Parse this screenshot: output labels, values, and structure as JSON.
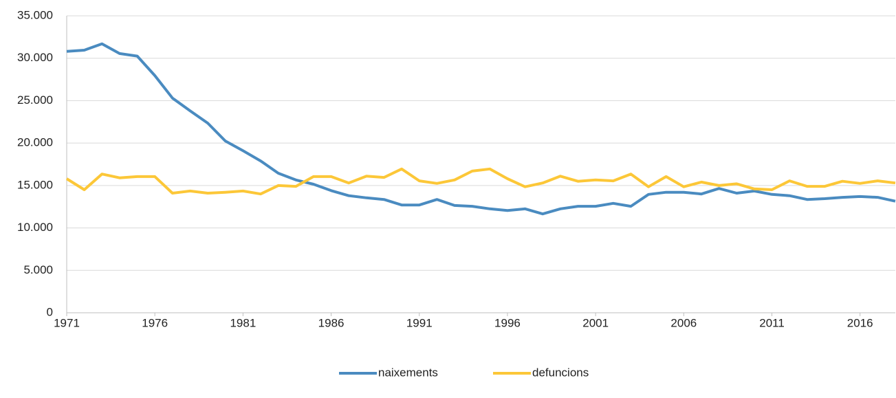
{
  "chart_data": {
    "type": "line",
    "x": [
      1971,
      1972,
      1973,
      1974,
      1975,
      1976,
      1977,
      1978,
      1979,
      1980,
      1981,
      1982,
      1983,
      1984,
      1985,
      1986,
      1987,
      1988,
      1989,
      1990,
      1991,
      1992,
      1993,
      1994,
      1995,
      1996,
      1997,
      1998,
      1999,
      2000,
      2001,
      2002,
      2003,
      2004,
      2005,
      2006,
      2007,
      2008,
      2009,
      2010,
      2011,
      2012,
      2013,
      2014,
      2015,
      2016,
      2017,
      2018
    ],
    "xlim": [
      1971,
      2018
    ],
    "xticks": [
      1971,
      1976,
      1981,
      1986,
      1991,
      1996,
      2001,
      2006,
      2011,
      2016
    ],
    "ylim": [
      0,
      35000
    ],
    "yticks": [
      {
        "value": 0,
        "label": "0"
      },
      {
        "value": 5000,
        "label": "5.000"
      },
      {
        "value": 10000,
        "label": "10.000"
      },
      {
        "value": 15000,
        "label": "15.000"
      },
      {
        "value": 20000,
        "label": "20.000"
      },
      {
        "value": 25000,
        "label": "25.000"
      },
      {
        "value": 30000,
        "label": "30.000"
      },
      {
        "value": 35000,
        "label": "35.000"
      }
    ],
    "grid": true,
    "legend": "bottom",
    "series": [
      {
        "name": "naixements",
        "color": "#4a8bc0",
        "values": [
          30800,
          30950,
          31700,
          30550,
          30250,
          27950,
          25300,
          23800,
          22350,
          20250,
          19100,
          17900,
          16450,
          15650,
          15150,
          14400,
          13800,
          13550,
          13350,
          12700,
          12700,
          13350,
          12650,
          12550,
          12250,
          12050,
          12250,
          11650,
          12250,
          12550,
          12550,
          12900,
          12550,
          13950,
          14200,
          14200,
          14000,
          14650,
          14100,
          14350,
          13950,
          13800,
          13350,
          13450,
          13600,
          13700,
          13600,
          13150
        ]
      },
      {
        "name": "defuncions",
        "color": "#fcc738",
        "values": [
          15800,
          14500,
          16350,
          15900,
          16050,
          16050,
          14100,
          14350,
          14100,
          14200,
          14350,
          14000,
          15000,
          14900,
          16050,
          16050,
          15300,
          16100,
          15950,
          16950,
          15550,
          15250,
          15650,
          16700,
          16950,
          15800,
          14850,
          15300,
          16100,
          15500,
          15650,
          15550,
          16350,
          14850,
          16050,
          14850,
          15400,
          15000,
          15200,
          14600,
          14500,
          15550,
          14900,
          14900,
          15500,
          15250,
          15550,
          15300
        ]
      }
    ]
  }
}
